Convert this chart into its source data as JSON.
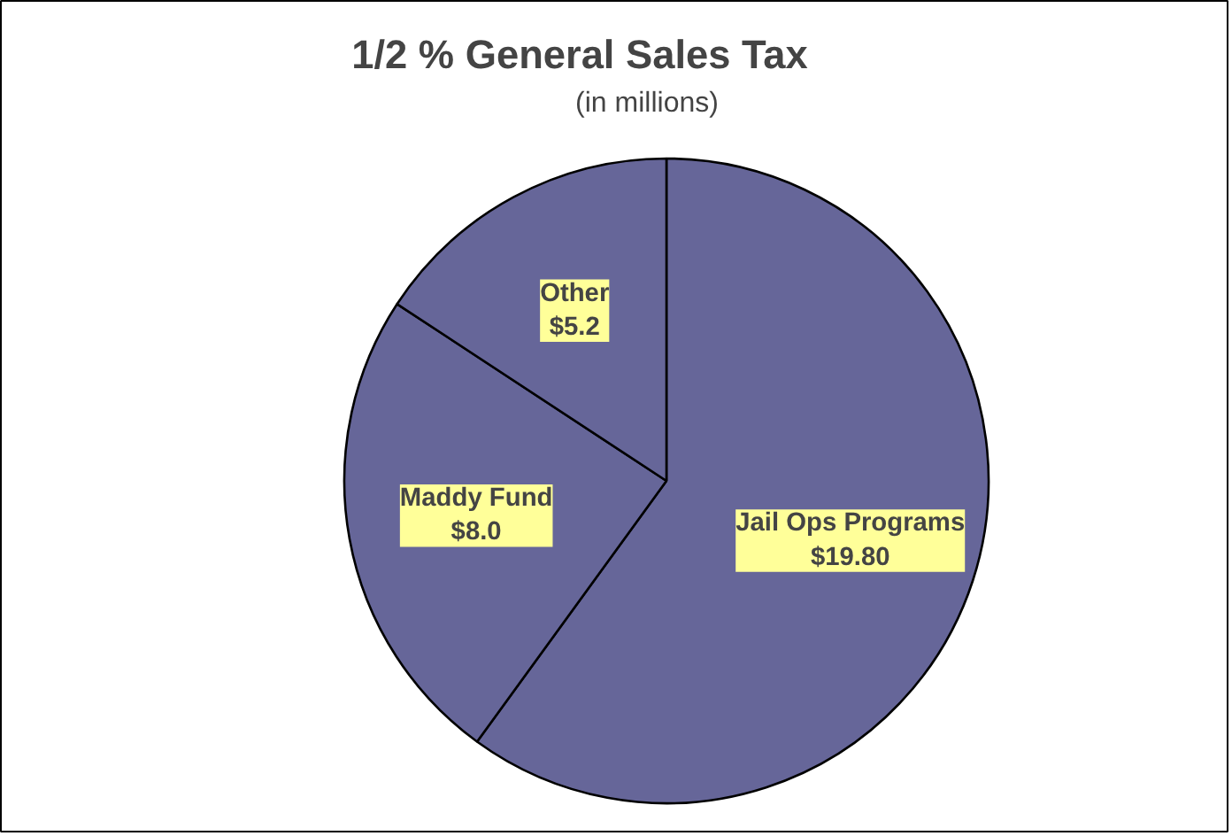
{
  "chart_data": {
    "type": "pie",
    "title": "1/2 % General Sales Tax",
    "subtitle": "(in millions)",
    "categories": [
      "Jail Ops Programs",
      "Maddy Fund",
      "Other"
    ],
    "values": [
      19.8,
      8.0,
      5.2
    ],
    "value_labels": [
      "$19.80",
      "$8.0",
      "$5.2"
    ],
    "colors": [
      "#666699",
      "#666699",
      "#666699"
    ],
    "legend": false
  }
}
